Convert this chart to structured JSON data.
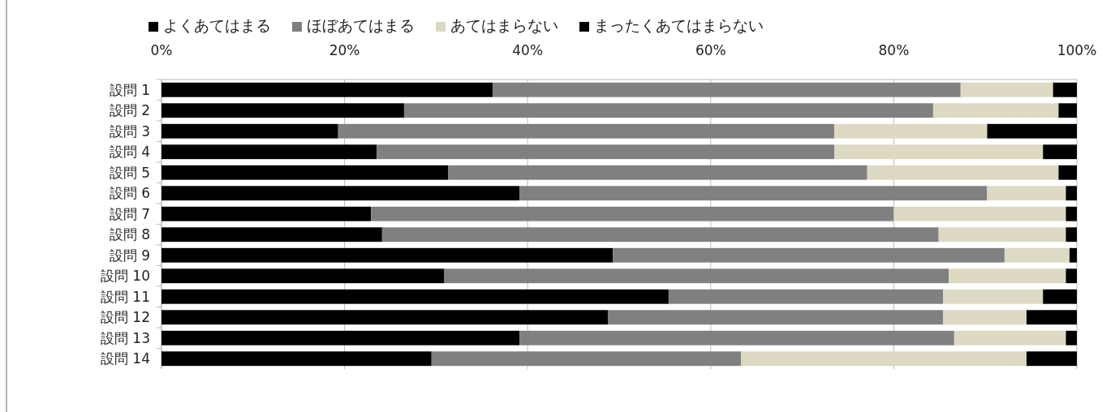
{
  "chart_data": {
    "type": "bar",
    "orientation": "horizontal",
    "stacked": true,
    "categories": [
      "設問 1",
      "設問 2",
      "設問 3",
      "設問 4",
      "設問 5",
      "設問 6",
      "設問 7",
      "設問 8",
      "設問 9",
      "設問 10",
      "設問 11",
      "設問 12",
      "設問 13",
      "設問 14"
    ],
    "series": [
      {
        "name": "よくあてはまる",
        "color": "#000000",
        "values": [
          36.2,
          26.5,
          19.3,
          23.5,
          31.3,
          39.1,
          22.9,
          24.1,
          49.3,
          30.9,
          55.4,
          48.8,
          39.1,
          29.5
        ]
      },
      {
        "name": "ほぼあてはまる",
        "color": "#808080",
        "values": [
          51.1,
          57.8,
          54.2,
          50.0,
          45.8,
          51.1,
          57.1,
          60.8,
          42.8,
          55.1,
          30.0,
          36.6,
          47.5,
          33.8
        ]
      },
      {
        "name": "あてはまらない",
        "color": "#ddd9c3",
        "values": [
          10.1,
          13.7,
          16.7,
          22.8,
          20.9,
          8.6,
          18.8,
          13.9,
          7.1,
          12.8,
          10.9,
          9.1,
          12.2,
          31.2
        ]
      },
      {
        "name": "まったくあてはまらない",
        "color": "#000000",
        "values": [
          2.6,
          2.0,
          9.8,
          3.7,
          2.0,
          1.2,
          1.2,
          1.2,
          0.8,
          1.2,
          3.7,
          5.5,
          1.2,
          5.5
        ]
      }
    ],
    "xlim": [
      0,
      100
    ],
    "xticks": [
      {
        "value": 0,
        "label": "0%"
      },
      {
        "value": 20,
        "label": "20%"
      },
      {
        "value": 40,
        "label": "40%"
      },
      {
        "value": 60,
        "label": "60%"
      },
      {
        "value": 80,
        "label": "80%"
      },
      {
        "value": 100,
        "label": "100%"
      }
    ],
    "grid": "x",
    "legend": "top"
  }
}
